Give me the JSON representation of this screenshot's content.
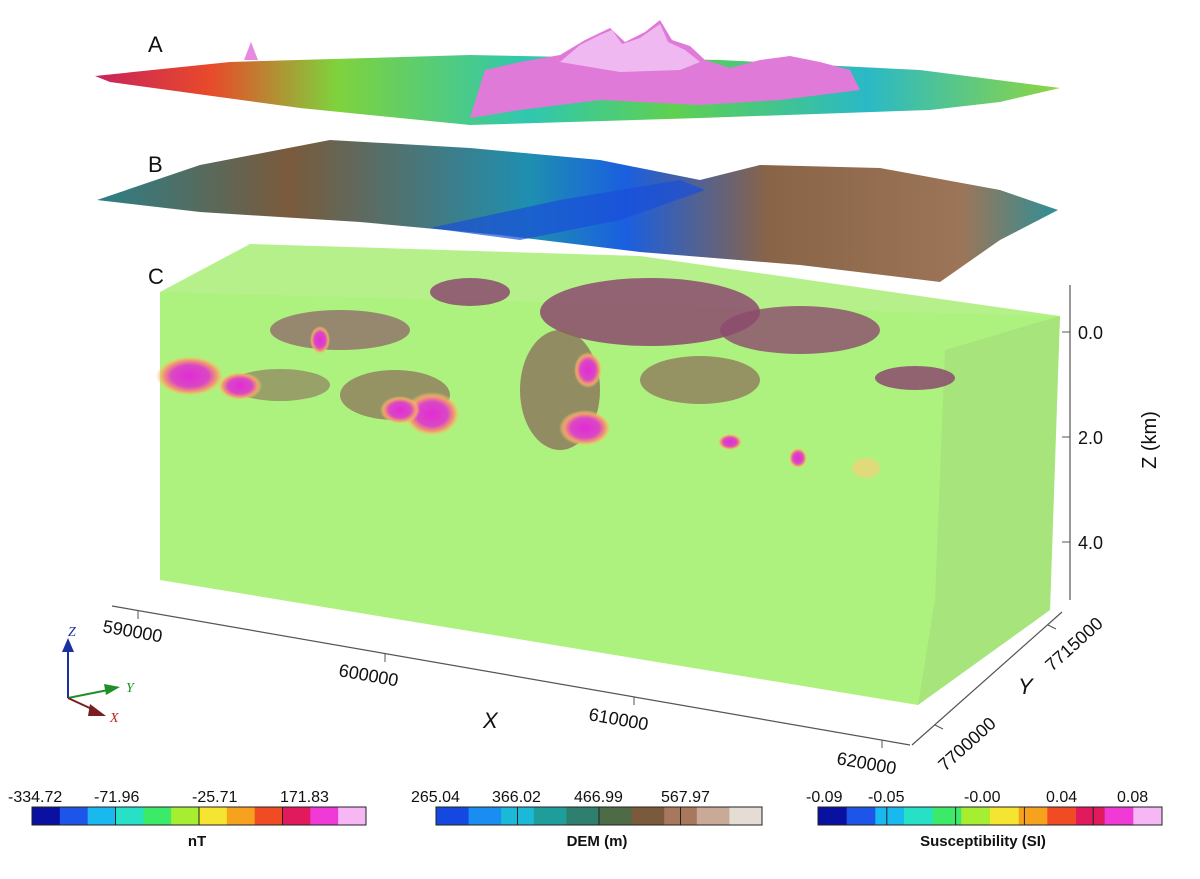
{
  "panels": {
    "a": "A",
    "b": "B",
    "c": "C"
  },
  "axes": {
    "x": {
      "title": "X",
      "ticks": [
        "590000",
        "600000",
        "610000",
        "620000"
      ]
    },
    "y": {
      "title": "Y",
      "ticks": [
        "7700000",
        "7715000"
      ]
    },
    "z": {
      "title": "Z (km)",
      "ticks": [
        "0.0",
        "2.0",
        "4.0"
      ]
    }
  },
  "triad": {
    "x": "X",
    "y": "Y",
    "z": "Z"
  },
  "colorbars": [
    {
      "title": "nT",
      "ticks": [
        "-334.72",
        "-71.96",
        "-25.71",
        "171.83"
      ],
      "colors": [
        "#0a10a0",
        "#1d55e8",
        "#19b8ee",
        "#27e0c8",
        "#3cea6a",
        "#a7ee32",
        "#f5e530",
        "#f7a21e",
        "#f04b22",
        "#e01a5c",
        "#f03ad8",
        "#f7b7f5"
      ]
    },
    {
      "title": "DEM (m)",
      "ticks": [
        "265.04",
        "366.02",
        "466.99",
        "567.97"
      ],
      "colors": [
        "#1548e0",
        "#1a8ef0",
        "#1bb8d8",
        "#1f9d9a",
        "#2f7f6e",
        "#4f6a46",
        "#7a5a3b",
        "#a8785e",
        "#c9a997",
        "#e6dcd6"
      ]
    },
    {
      "title": "Susceptibility (SI)",
      "ticks": [
        "-0.09",
        "-0.05",
        "-0.00",
        "0.04",
        "0.08"
      ],
      "colors": [
        "#0a10a0",
        "#1d55e8",
        "#19b8ee",
        "#27e0c8",
        "#3cea6a",
        "#a7ee32",
        "#f5e530",
        "#f7a21e",
        "#f04b22",
        "#e01a5c",
        "#f03ad8",
        "#f7b7f5"
      ]
    }
  ]
}
